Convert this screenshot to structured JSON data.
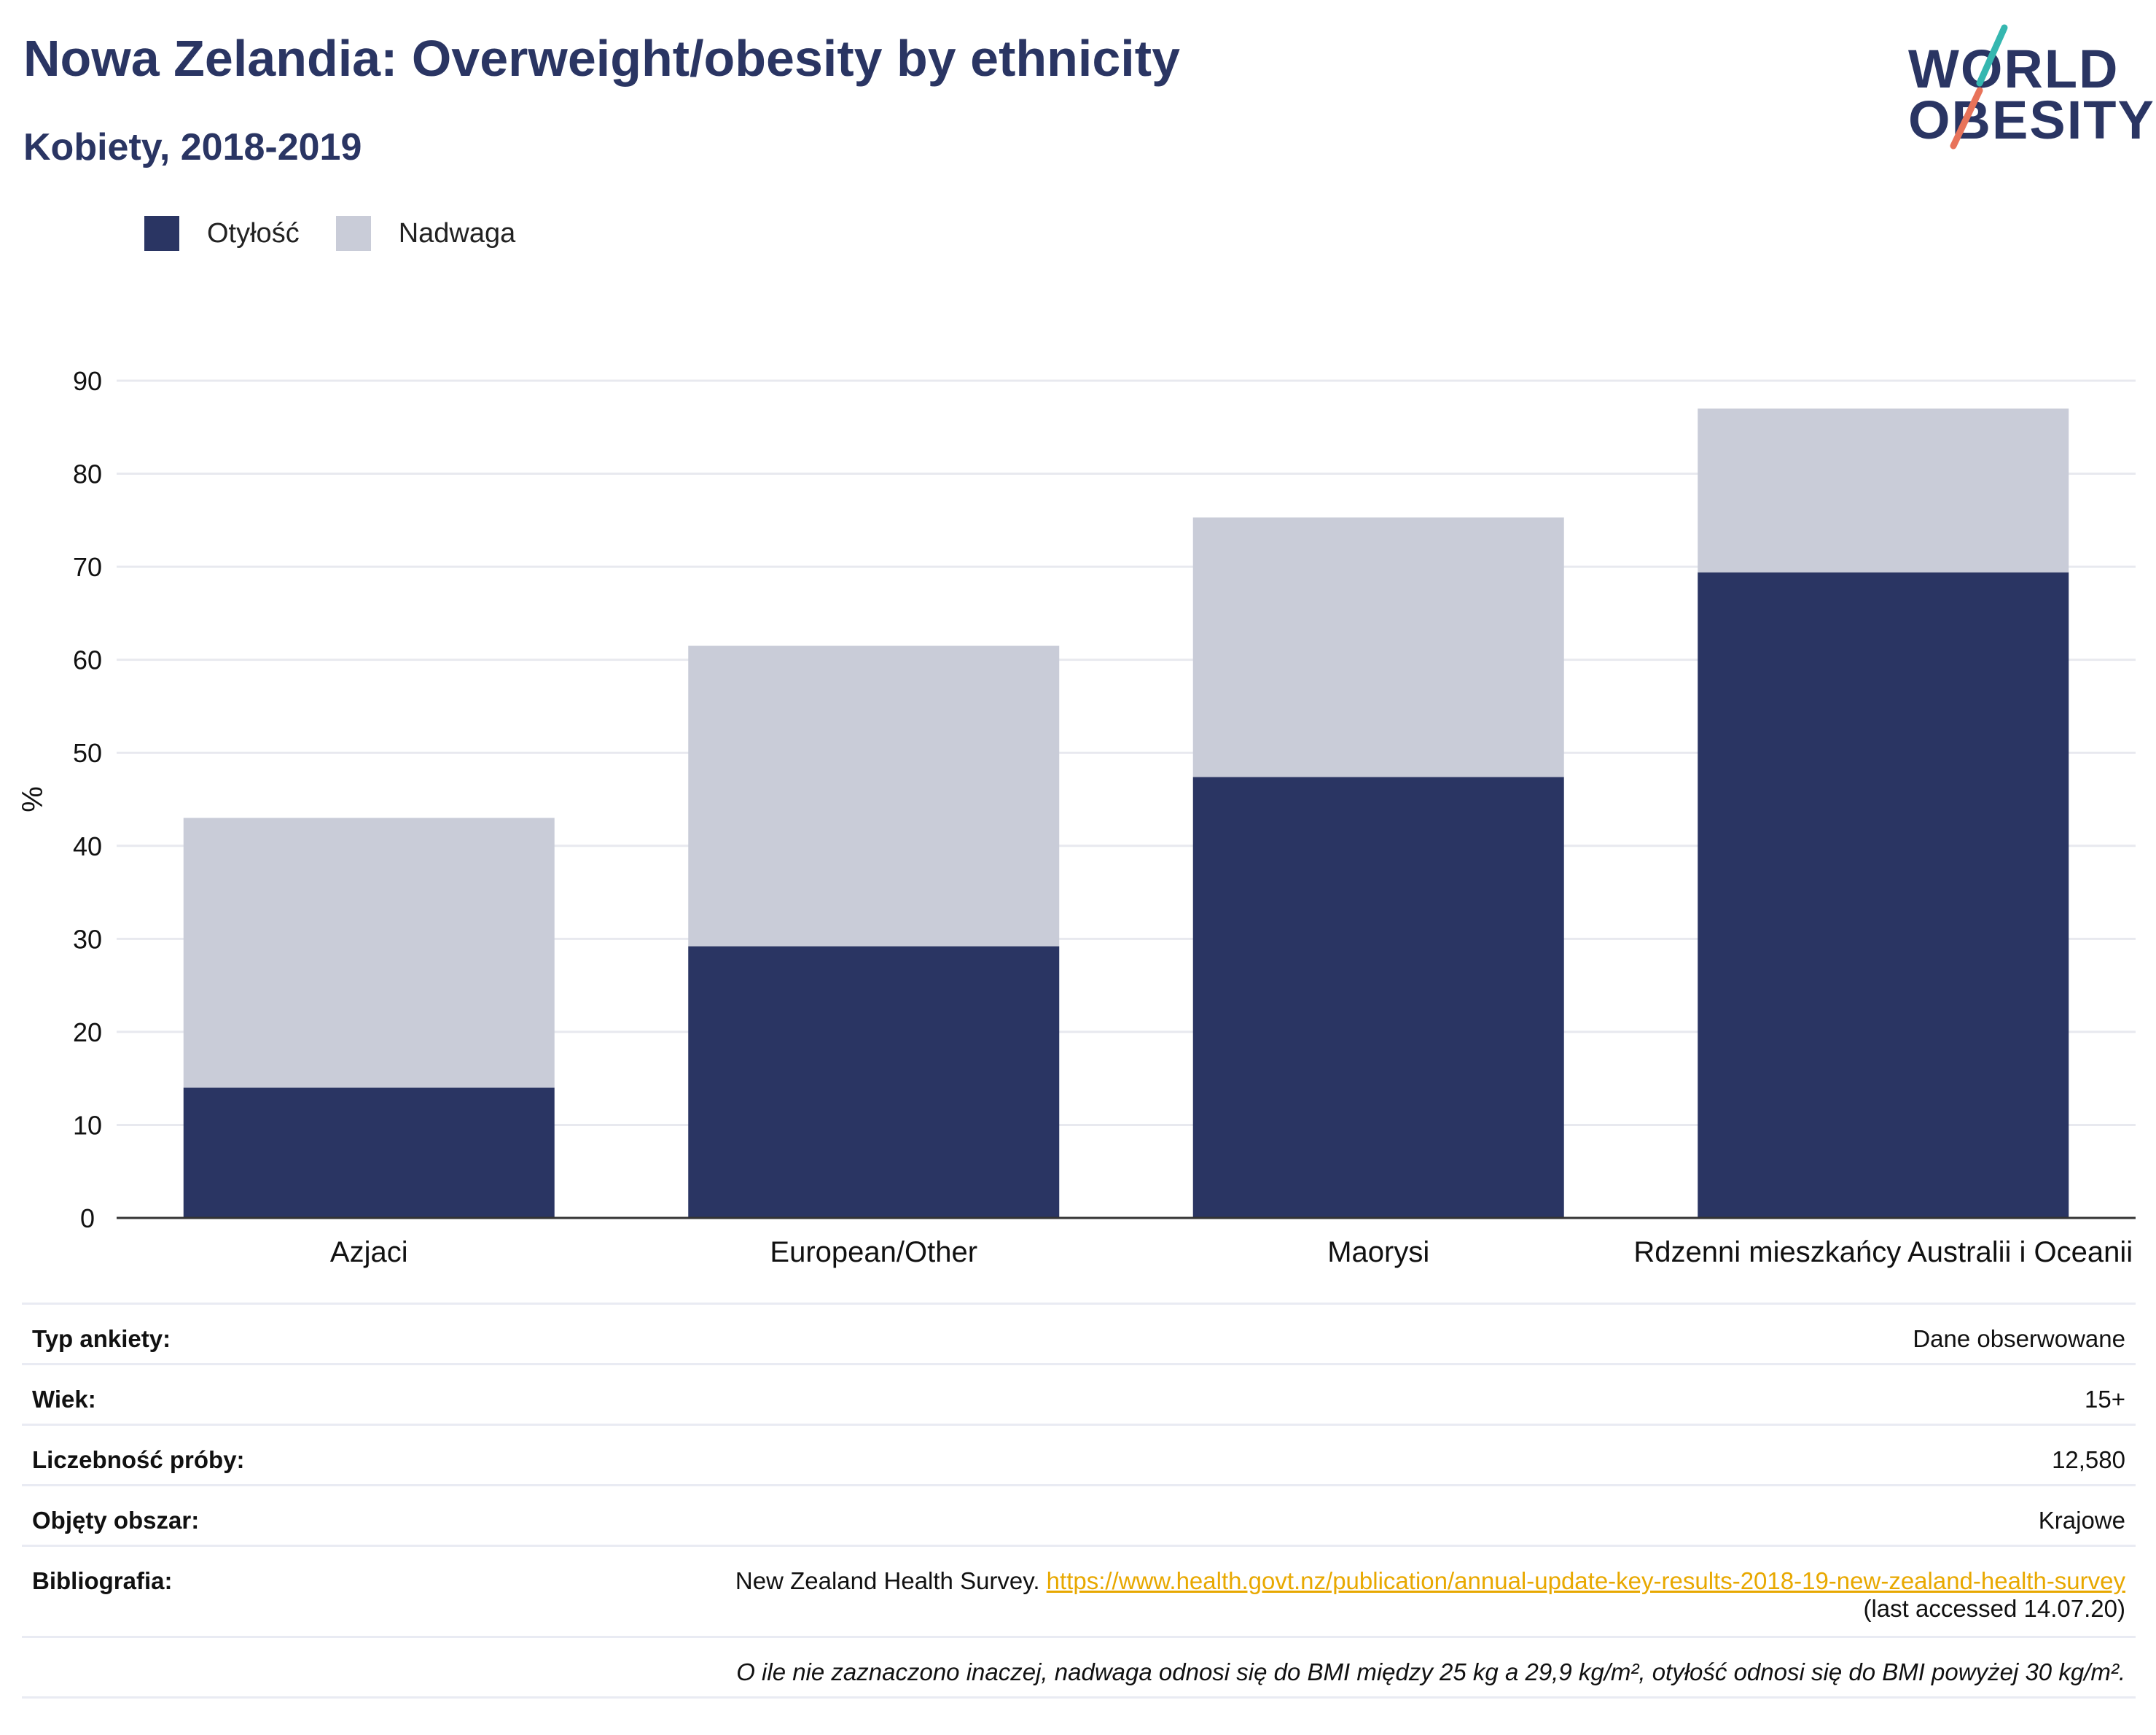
{
  "header": {
    "title": "Nowa Zelandia: Overweight/obesity by ethnicity",
    "subtitle": "Kobiety, 2018-2019"
  },
  "logo": {
    "line1": "WORLD",
    "line2": "OBESITY",
    "accent1": "#35b7b0",
    "accent2": "#e8735a"
  },
  "legend": {
    "items": [
      {
        "label": "Otyłość",
        "color": "#2a3563"
      },
      {
        "label": "Nadwaga",
        "color": "#c9ccd8"
      }
    ]
  },
  "chart_data": {
    "type": "bar",
    "stacked": true,
    "categories": [
      "Azjaci",
      "European/Other",
      "Maorysi",
      "Rdzenni mieszkańcy Australii i Oceanii"
    ],
    "series": [
      {
        "name": "Otyłość",
        "color": "#2a3563",
        "values": [
          14.0,
          29.2,
          47.4,
          69.4
        ]
      },
      {
        "name": "Nadwaga",
        "color": "#c9ccd8",
        "values": [
          29.0,
          32.3,
          27.9,
          17.6
        ]
      }
    ],
    "ylabel": "%",
    "ylim": [
      0,
      90
    ],
    "yticks": [
      "0",
      "10",
      "20",
      "30",
      "40",
      "50",
      "60",
      "70",
      "80",
      "90"
    ],
    "grid": true,
    "legend_position": "top-left"
  },
  "info": {
    "survey_type_label": "Typ ankiety:",
    "survey_type_value": "Dane obserwowane",
    "age_label": "Wiek:",
    "age_value": "15+",
    "sample_label": "Liczebność próby:",
    "sample_value": "12,580",
    "area_label": "Objęty obszar:",
    "area_value": "Krajowe",
    "bib_label": "Bibliografia:",
    "bib_text": "New Zealand Health Survey.",
    "bib_link": "https://www.health.govt.nz/publication/annual-update-key-results-2018-19-new-zealand-health-survey",
    "bib_accessed": "(last accessed 14.07.20)",
    "footnote": "O ile nie zaznaczono inaczej, nadwaga odnosi się do BMI między 25 kg a 29,9 kg/m², otyłość odnosi się do BMI powyżej 30 kg/m²."
  }
}
